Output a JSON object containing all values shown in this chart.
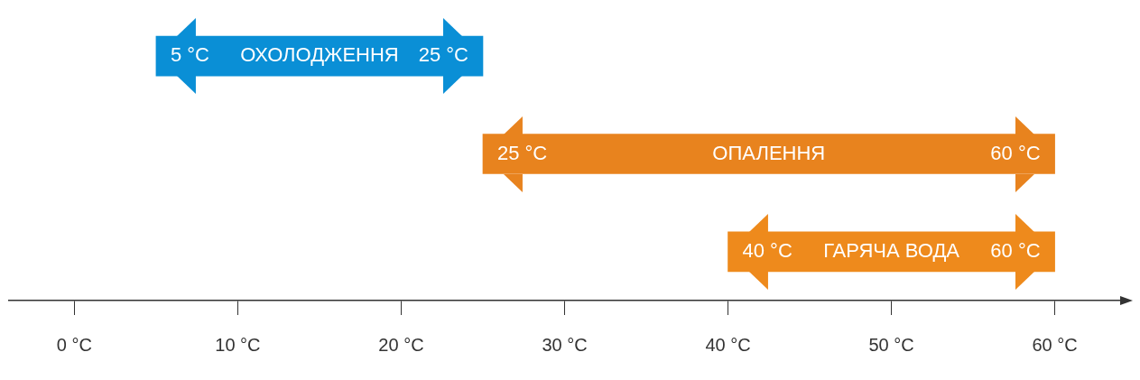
{
  "chart_data": {
    "type": "bar",
    "orientation": "horizontal",
    "categories": [
      "ОХОЛОДЖЕННЯ",
      "ОПАЛЕННЯ",
      "ГАРЯЧА ВОДА"
    ],
    "base": [
      5,
      25,
      40
    ],
    "values": [
      20,
      35,
      20
    ],
    "colors": [
      "#0a8fd6",
      "#e8831e",
      "#ee8a1c"
    ],
    "xlim": [
      -4,
      64
    ],
    "xticks": [
      {
        "value": 0,
        "label": "0 °C"
      },
      {
        "value": 10,
        "label": "10 °C"
      },
      {
        "value": 20,
        "label": "20 °C"
      },
      {
        "value": 30,
        "label": "30 °C"
      },
      {
        "value": 40,
        "label": "40 °C"
      },
      {
        "value": 50,
        "label": "50 °C"
      },
      {
        "value": 60,
        "label": "60 °C"
      }
    ],
    "annotations": [
      {
        "text": "5 °C",
        "x": 5,
        "y": "ОХОЛОДЖЕННЯ"
      },
      {
        "text": "25 °C",
        "x": 25,
        "y": "ОХОЛОДЖЕННЯ"
      },
      {
        "text": "25 °C",
        "x": 25,
        "y": "ОПАЛЕННЯ"
      },
      {
        "text": "60 °C",
        "x": 60,
        "y": "ОПАЛЕННЯ"
      },
      {
        "text": "40 °C",
        "x": 40,
        "y": "ГАРЯЧА ВОДА"
      },
      {
        "text": "60 °C",
        "x": 60,
        "y": "ГАРЯЧА ВОДА"
      }
    ],
    "grid": false,
    "legend": false
  }
}
